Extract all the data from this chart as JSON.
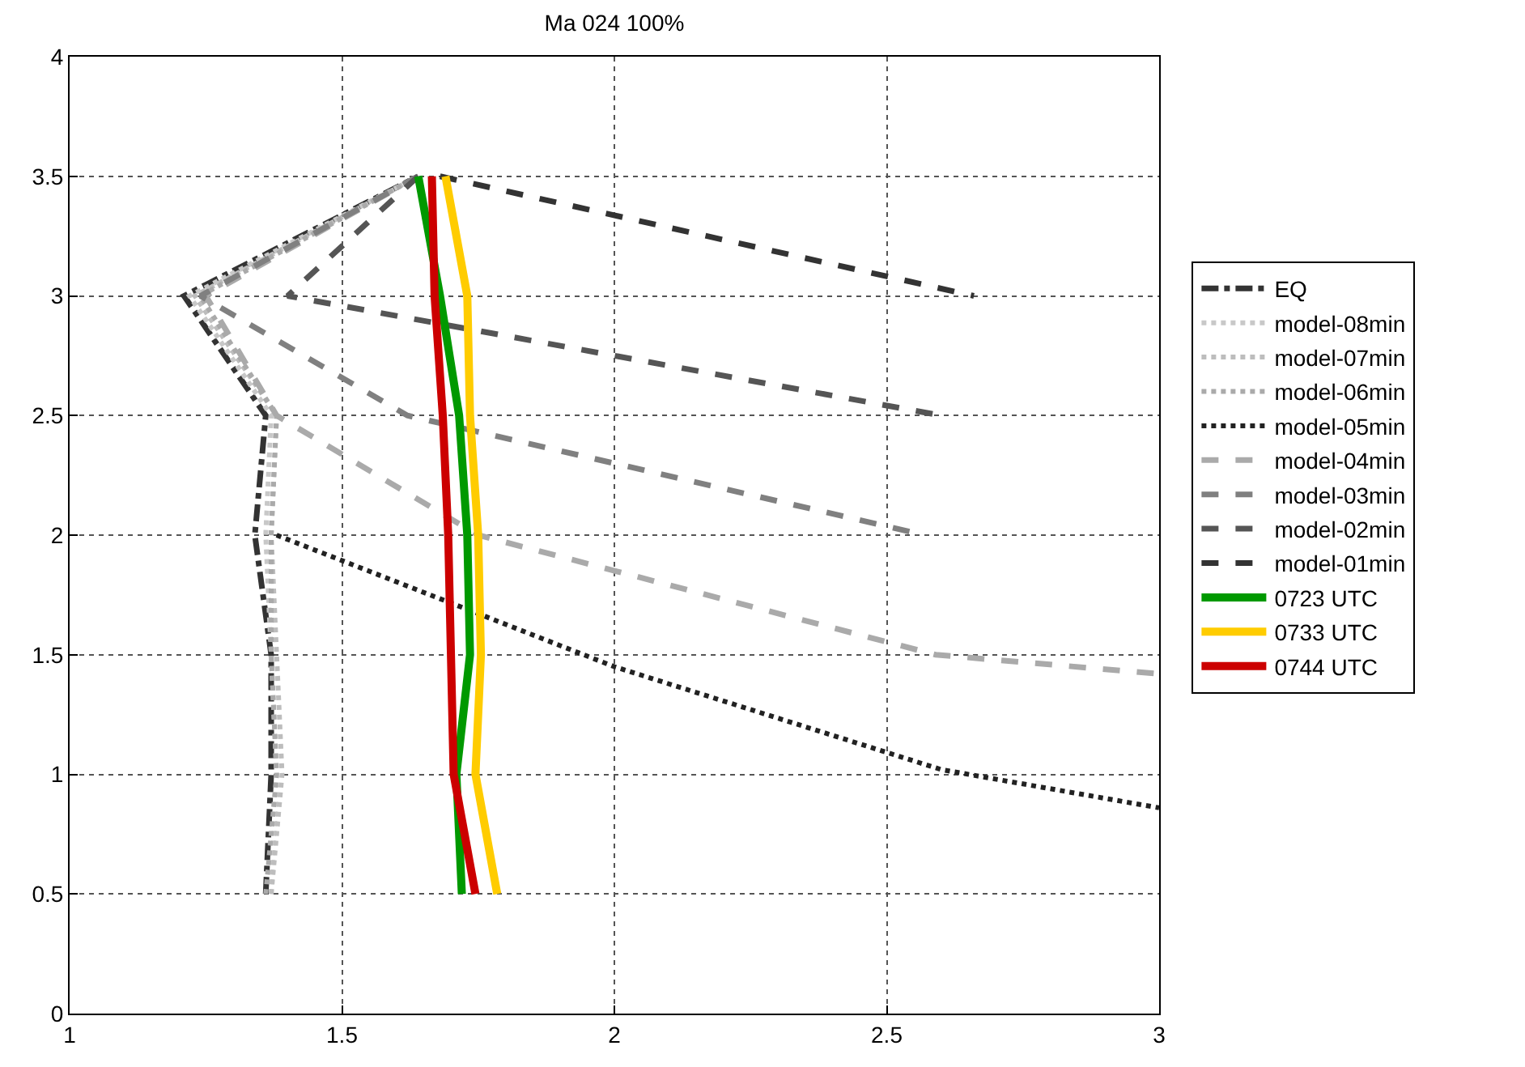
{
  "chart_data": {
    "type": "line",
    "title": "Ma 024 100%",
    "legend": "right",
    "grid": true,
    "marker": "none",
    "xlim": [
      1,
      3
    ],
    "xticks": [
      1,
      1.5,
      2,
      2.5,
      3
    ],
    "ylim": [
      0,
      4
    ],
    "yticks": [
      0,
      0.5,
      1,
      1.5,
      2,
      2.5,
      3,
      3.5,
      4
    ],
    "series": [
      {
        "name": "EQ",
        "color": "#333333",
        "line_style": "dashdot",
        "x": [
          1.36,
          1.37,
          1.37,
          1.34,
          1.36,
          1.21,
          1.64
        ],
        "values": [
          0.5,
          1,
          1.5,
          2,
          2.5,
          3,
          3.5
        ]
      },
      {
        "name": "model-08min",
        "color": "#c8c8c8",
        "line_style": "dotted",
        "x": [
          1.37,
          1.38,
          1.37,
          1.36,
          1.37,
          1.22,
          1.64
        ],
        "values": [
          0.5,
          1,
          1.5,
          2,
          2.5,
          3,
          3.5
        ]
      },
      {
        "name": "model-07min",
        "color": "#bdbdbd",
        "line_style": "dotted",
        "x": [
          1.37,
          1.39,
          1.38,
          1.37,
          1.38,
          1.23,
          1.64
        ],
        "values": [
          0.5,
          1,
          1.5,
          2,
          2.5,
          3,
          3.5
        ]
      },
      {
        "name": "model-06min",
        "color": "#aaaaaa",
        "line_style": "dotted",
        "x": [
          1.36,
          1.38,
          1.37,
          1.37,
          1.38,
          1.24,
          1.64
        ],
        "values": [
          0.5,
          1,
          1.5,
          2,
          2.5,
          3,
          3.5
        ]
      },
      {
        "name": "model-05min",
        "color": "#222222",
        "line_style": "dotted",
        "x": [
          1.38,
          2.0,
          2.6,
          3.0
        ],
        "values": [
          2,
          1.45,
          1.02,
          0.86
        ]
      },
      {
        "name": "model-04min",
        "color": "#aaaaaa",
        "line_style": "dashed",
        "x": [
          1.64,
          1.25,
          1.38,
          1.75,
          2.59,
          3.0
        ],
        "values": [
          3.5,
          3,
          2.5,
          2,
          1.5,
          1.42
        ]
      },
      {
        "name": "model-03min",
        "color": "#808080",
        "line_style": "dashed",
        "x": [
          1.64,
          1.24,
          1.62,
          2.57
        ],
        "values": [
          3.5,
          3,
          2.5,
          2
        ]
      },
      {
        "name": "model-02min",
        "color": "#555555",
        "line_style": "dashed",
        "x": [
          1.64,
          1.4,
          2.6
        ],
        "values": [
          3.5,
          3,
          2.5
        ]
      },
      {
        "name": "model-01min",
        "color": "#333333",
        "line_style": "dashed",
        "x": [
          1.68,
          2.66
        ],
        "values": [
          3.5,
          3
        ]
      },
      {
        "name": "0723 UTC",
        "color": "#009900",
        "line_style": "solid",
        "x": [
          1.72,
          1.71,
          1.735,
          1.73,
          1.715,
          1.68,
          1.64
        ],
        "values": [
          0.5,
          1,
          1.5,
          2,
          2.5,
          3,
          3.5
        ]
      },
      {
        "name": "0733 UTC",
        "color": "#ffcc00",
        "line_style": "solid",
        "x": [
          1.785,
          1.745,
          1.755,
          1.75,
          1.735,
          1.73,
          1.69
        ],
        "values": [
          0.5,
          1,
          1.5,
          2,
          2.5,
          3,
          3.5
        ]
      },
      {
        "name": "0744 UTC",
        "color": "#cc0000",
        "line_style": "solid",
        "x": [
          1.745,
          1.705,
          1.7,
          1.695,
          1.685,
          1.67,
          1.665
        ],
        "values": [
          0.5,
          1,
          1.5,
          2,
          2.5,
          3,
          3.5
        ]
      }
    ]
  }
}
